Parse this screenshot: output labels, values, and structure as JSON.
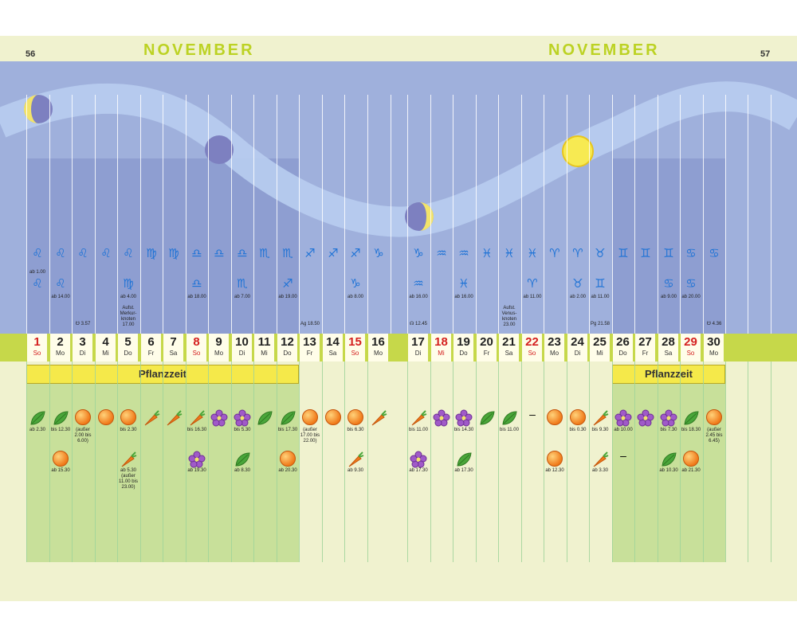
{
  "header": {
    "left_page": "56",
    "right_page": "57",
    "left_month": "NOVEMBER",
    "right_month": "NOVEMBER"
  },
  "days": [
    {
      "n": "1",
      "w": "So",
      "sun": true
    },
    {
      "n": "2",
      "w": "Mo"
    },
    {
      "n": "3",
      "w": "Di"
    },
    {
      "n": "4",
      "w": "Mi"
    },
    {
      "n": "5",
      "w": "Do"
    },
    {
      "n": "6",
      "w": "Fr"
    },
    {
      "n": "7",
      "w": "Sa"
    },
    {
      "n": "8",
      "w": "So",
      "sun": true
    },
    {
      "n": "9",
      "w": "Mo"
    },
    {
      "n": "10",
      "w": "Di"
    },
    {
      "n": "11",
      "w": "Mi"
    },
    {
      "n": "12",
      "w": "Do"
    },
    {
      "n": "13",
      "w": "Fr"
    },
    {
      "n": "14",
      "w": "Sa"
    },
    {
      "n": "15",
      "w": "So",
      "sun": true
    },
    {
      "n": "16",
      "w": "Mo"
    },
    {
      "n": "17",
      "w": "Di"
    },
    {
      "n": "18",
      "w": "Mi",
      "sun": true
    },
    {
      "n": "19",
      "w": "Do"
    },
    {
      "n": "20",
      "w": "Fr"
    },
    {
      "n": "21",
      "w": "Sa"
    },
    {
      "n": "22",
      "w": "So",
      "sun": true
    },
    {
      "n": "23",
      "w": "Mo"
    },
    {
      "n": "24",
      "w": "Di"
    },
    {
      "n": "25",
      "w": "Mi"
    },
    {
      "n": "26",
      "w": "Do"
    },
    {
      "n": "27",
      "w": "Fr"
    },
    {
      "n": "28",
      "w": "Sa"
    },
    {
      "n": "29",
      "w": "So",
      "sun": true
    },
    {
      "n": "30",
      "w": "Mo"
    }
  ],
  "pflanzzeit_label": "Pflanzzeit",
  "astro_notes": {
    "sign_times_top": [
      {
        "d": 0,
        "t": "ab 1.00"
      },
      {
        "d": 1,
        "t": "ab 14.00"
      },
      {
        "d": 4,
        "t": "ab 4.00"
      },
      {
        "d": 7,
        "t": "ab 18.00"
      },
      {
        "d": 9,
        "t": "ab 7.00"
      },
      {
        "d": 11,
        "t": "ab 19.00"
      },
      {
        "d": 14,
        "t": "ab 8.00"
      },
      {
        "d": 16,
        "t": "ab 16.00"
      },
      {
        "d": 18,
        "t": "ab 16.00"
      },
      {
        "d": 21,
        "t": "ab 11.00"
      },
      {
        "d": 23,
        "t": "ab 2.00"
      },
      {
        "d": 24,
        "t": "ab 11.00"
      },
      {
        "d": 27,
        "t": "ab 9.00"
      },
      {
        "d": 28,
        "t": "ab 20.00"
      }
    ],
    "events": [
      {
        "d": 2,
        "t": "☋ 3.57"
      },
      {
        "d": 4,
        "t": "Aufst. Merkur- knoten 17.00"
      },
      {
        "d": 12,
        "t": "Ag 18.50"
      },
      {
        "d": 16,
        "t": "☊ 12.45"
      },
      {
        "d": 20,
        "t": "Aufst. Venus- knoten 23.00"
      },
      {
        "d": 24,
        "t": "Pg 21.58"
      },
      {
        "d": 29,
        "t": "☋ 4.36"
      }
    ]
  },
  "plant_times": [
    {
      "d": 0,
      "t": "ab 2.30"
    },
    {
      "d": 1,
      "t": "bis 12.30"
    },
    {
      "d": 2,
      "t": "(außer 2.00 bis 6.00)"
    },
    {
      "d": 4,
      "t": "bis 2.30"
    },
    {
      "d": 7,
      "t": "bis 16.30"
    },
    {
      "d": 9,
      "t": "bis 5.30"
    },
    {
      "d": 11,
      "t": "bis 17.30"
    },
    {
      "d": 12,
      "t": "(außer 17.00 bis 22.00)"
    },
    {
      "d": 14,
      "t": "bis 6.30"
    },
    {
      "d": 16,
      "t": "bis 11.00"
    },
    {
      "d": 18,
      "t": "bis 14.30"
    },
    {
      "d": 20,
      "t": "bis 11.00"
    },
    {
      "d": 23,
      "t": "bis 0.30"
    },
    {
      "d": 24,
      "t": "bis 9.30"
    },
    {
      "d": 25,
      "t": "ab 10.00"
    },
    {
      "d": 27,
      "t": "bis 7.30"
    },
    {
      "d": 28,
      "t": "bis 18.30"
    },
    {
      "d": 29,
      "t": "(außer 2.45 bis 6.45)"
    }
  ],
  "plant_times_2": [
    {
      "d": 1,
      "t": "ab 15.30"
    },
    {
      "d": 4,
      "t": "ab 5.30 (außer 11.00 bis 23.00)"
    },
    {
      "d": 7,
      "t": "ab 19.30"
    },
    {
      "d": 9,
      "t": "ab 8.30"
    },
    {
      "d": 11,
      "t": "ab 20.30"
    },
    {
      "d": 14,
      "t": "ab 9.30"
    },
    {
      "d": 16,
      "t": "ab 17.30"
    },
    {
      "d": 18,
      "t": "ab 17.30"
    },
    {
      "d": 22,
      "t": "ab 12.30"
    },
    {
      "d": 24,
      "t": "ab 3.30"
    },
    {
      "d": 27,
      "t": "ab 10.30"
    },
    {
      "d": 28,
      "t": "ab 21.30"
    }
  ],
  "dash": "–",
  "colors": {
    "sky": "#9fb0dc",
    "band": "#c6d84a",
    "month": "#bcd223",
    "sunday": "#d42020",
    "green": "#c8e09a"
  },
  "icons": {
    "row1": [
      "lion",
      "lion",
      "lion",
      "lion",
      "lion",
      "virgo",
      "virgo",
      "scales",
      "scales",
      "scales",
      "scorpion",
      "scorpion",
      "archer",
      "archer",
      "archer",
      "goat",
      "goat",
      "waterman",
      "waterman",
      "fish",
      "fish",
      "fish",
      "ram",
      "ram",
      "bull",
      "twins",
      "twins",
      "twins",
      "crab",
      "crab"
    ],
    "plants1": [
      "leaf",
      "leaf",
      "fruit",
      "fruit",
      "fruit",
      "root",
      "root",
      "root",
      "flower",
      "flower",
      "leaf",
      "leaf",
      "fruit",
      "fruit",
      "fruit",
      "root",
      "root",
      "flower",
      "flower",
      "leaf",
      "leaf",
      "dash",
      "fruit",
      "fruit",
      "root",
      "flower",
      "flower",
      "flower",
      "leaf",
      "fruit"
    ]
  }
}
